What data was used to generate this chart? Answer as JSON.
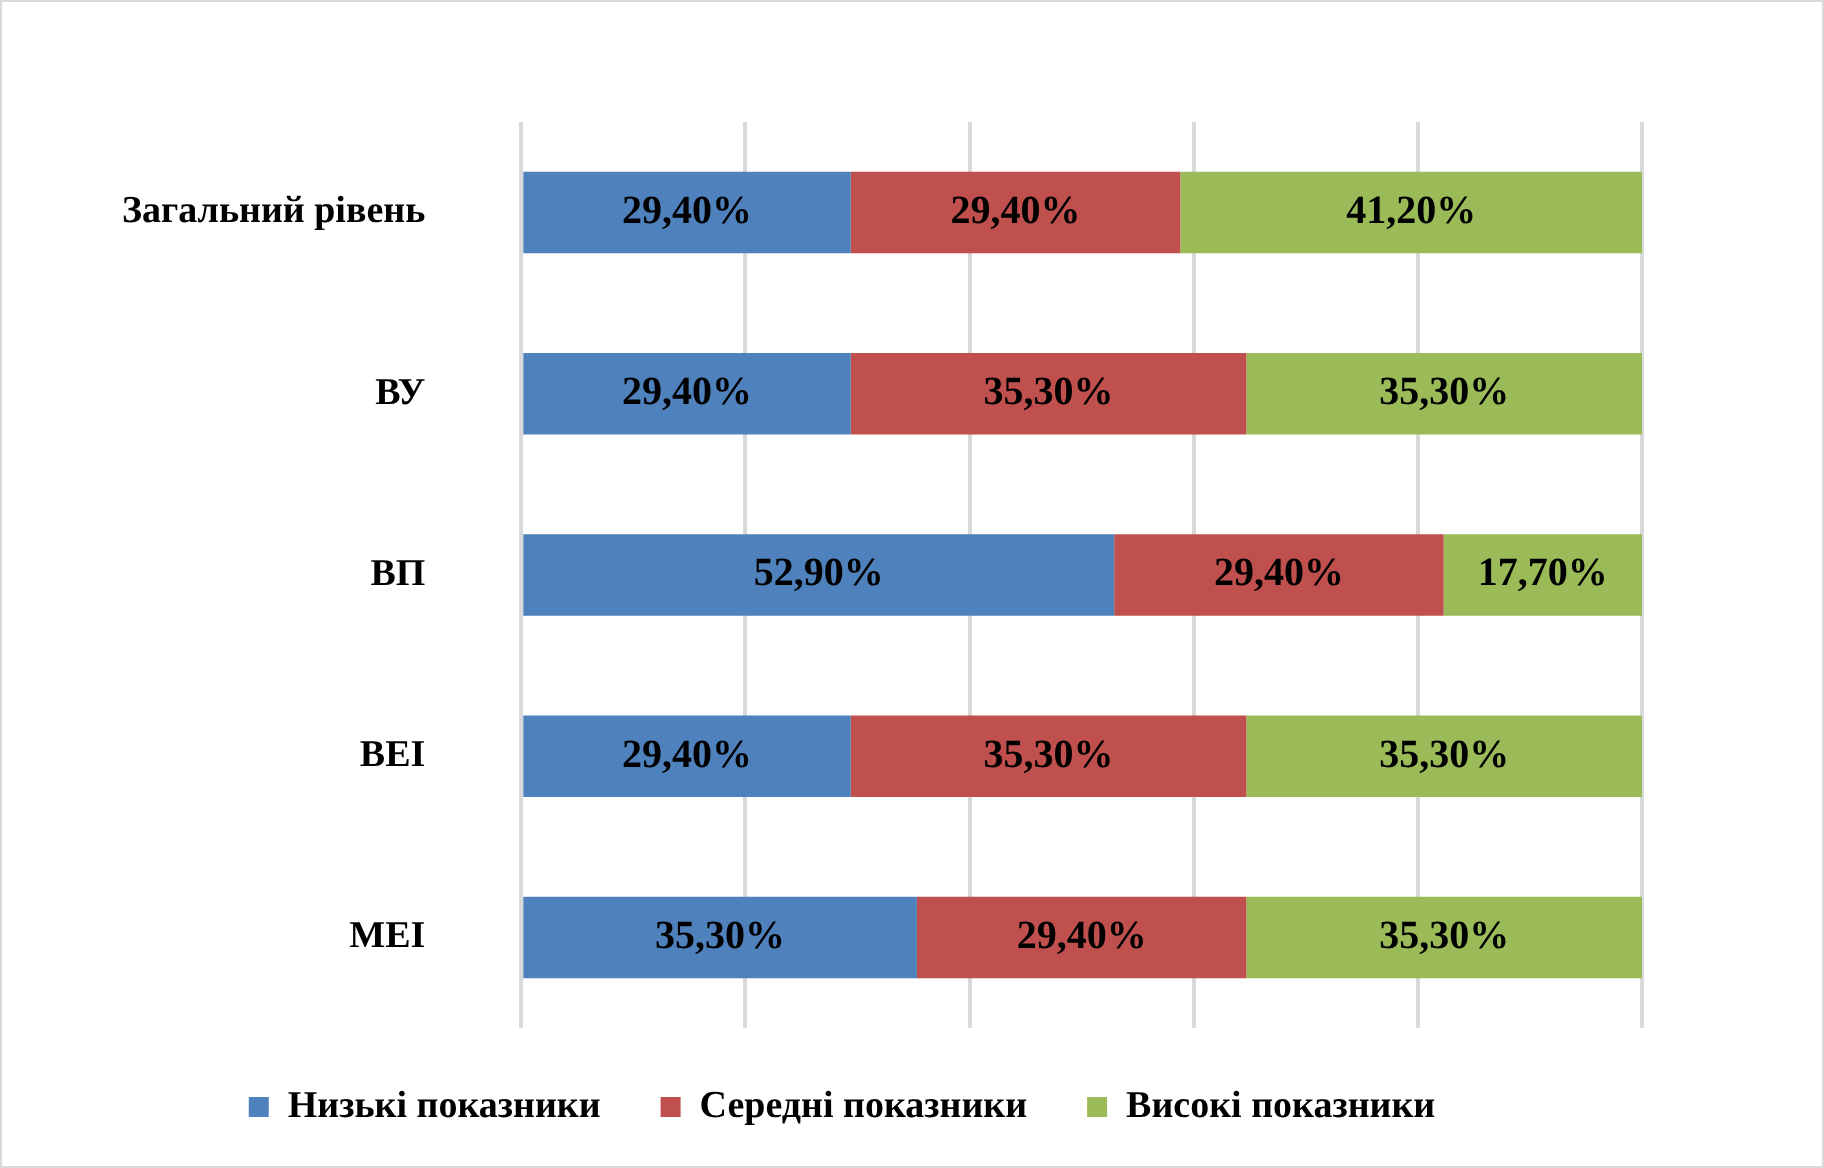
{
  "chart_data": {
    "type": "bar",
    "orientation": "horizontal",
    "stacked": true,
    "categories": [
      "Загальний рівень",
      "ВУ",
      "ВП",
      "ВЕІ",
      "МЕІ"
    ],
    "series": [
      {
        "name": "Низькі показники",
        "color": "#4f81bd",
        "values": [
          29.4,
          29.4,
          52.9,
          29.4,
          35.3
        ],
        "value_labels": [
          "29,40%",
          "29,40%",
          "52,90%",
          "29,40%",
          "35,30%"
        ]
      },
      {
        "name": "Середні показники",
        "color": "#c0504d",
        "values": [
          29.4,
          35.3,
          29.4,
          35.3,
          29.4
        ],
        "value_labels": [
          "29,40%",
          "35,30%",
          "29,40%",
          "35,30%",
          "29,40%"
        ]
      },
      {
        "name": "Високі показники",
        "color": "#9bbb59",
        "values": [
          41.2,
          35.3,
          17.7,
          35.3,
          35.3
        ],
        "value_labels": [
          "41,20%",
          "35,30%",
          "17,70%",
          "35,30%",
          "35,30%"
        ]
      }
    ],
    "xlim": [
      0,
      100
    ],
    "xticks": [
      {
        "value": 0,
        "label": null
      },
      {
        "value": 20,
        "label": null
      },
      {
        "value": 40,
        "label": null
      },
      {
        "value": 60,
        "label": null
      },
      {
        "value": 80,
        "label": null
      },
      {
        "value": 100,
        "label": null
      }
    ],
    "tick_labels": "y",
    "grid": "x",
    "legend": "bottom"
  }
}
